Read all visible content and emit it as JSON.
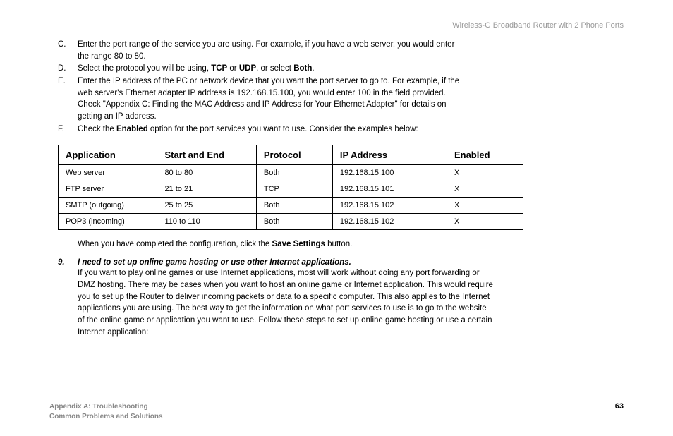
{
  "header": {
    "product": "Wireless-G Broadband Router with 2 Phone Ports"
  },
  "list": {
    "c": {
      "marker": "C.",
      "text": "Enter the port range of the service you are using. For example, if you have a web server, you would enter the range 80 to 80."
    },
    "d": {
      "marker": "D.",
      "pre": "Select the protocol you will be using, ",
      "b1": "TCP",
      "mid1": " or ",
      "b2": "UDP",
      "mid2": ", or select ",
      "b3": "Both",
      "post": "."
    },
    "e": {
      "marker": "E.",
      "text": "Enter the IP address of the PC or network device that you want the port server to go to. For example, if the web server's Ethernet adapter IP address is 192.168.15.100, you would enter 100 in the field provided. Check \"Appendix C: Finding the MAC Address and IP Address for Your Ethernet Adapter\" for details on getting an IP address."
    },
    "f": {
      "marker": "F.",
      "pre": "Check the ",
      "b1": "Enabled",
      "post": " option for the port services you want to use. Consider the examples below:"
    }
  },
  "table": {
    "headers": {
      "app": "Application",
      "se": "Start and End",
      "proto": "Protocol",
      "ip": "IP Address",
      "en": "Enabled"
    },
    "rows": [
      {
        "app": "Web server",
        "se": "80 to 80",
        "proto": "Both",
        "ip": "192.168.15.100",
        "en": "X"
      },
      {
        "app": "FTP server",
        "se": "21 to 21",
        "proto": "TCP",
        "ip": "192.168.15.101",
        "en": "X"
      },
      {
        "app": "SMTP (outgoing)",
        "se": "25 to 25",
        "proto": "Both",
        "ip": "192.168.15.102",
        "en": "X"
      },
      {
        "app": "POP3 (incoming)",
        "se": "110 to 110",
        "proto": "Both",
        "ip": "192.168.15.102",
        "en": "X"
      }
    ]
  },
  "afterTable": {
    "pre": "When you have completed the configuration, click the ",
    "b": "Save Settings",
    "post": " button."
  },
  "q9": {
    "num": "9.",
    "title": "I need to set up online game hosting or use other Internet applications.",
    "text": "If you want to play online games or use Internet applications, most will work without doing any port forwarding or DMZ hosting.  There may be cases when you want to host an online game or Internet application.  This would require you to set up the Router to deliver incoming packets or data to a specific computer.  This also applies to the Internet applications you are using. The best way to get the information on what port services to use is to go to the website of the online game or application you want to use. Follow these steps to set up online game hosting or use a certain Internet application:"
  },
  "footer": {
    "line1": "Appendix A: Troubleshooting",
    "line2": "Common Problems and Solutions",
    "page": "63"
  }
}
